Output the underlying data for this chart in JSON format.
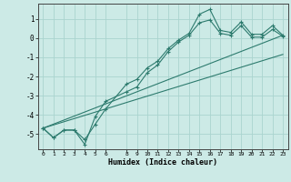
{
  "xlabel": "Humidex (Indice chaleur)",
  "xlim": [
    -0.5,
    23.5
  ],
  "ylim": [
    -5.8,
    1.8
  ],
  "xticks": [
    0,
    1,
    2,
    3,
    4,
    5,
    6,
    8,
    9,
    10,
    11,
    12,
    13,
    14,
    15,
    16,
    17,
    18,
    19,
    20,
    21,
    22,
    23
  ],
  "yticks": [
    -5,
    -4,
    -3,
    -2,
    -1,
    0,
    1
  ],
  "background_color": "#cceae6",
  "grid_color": "#aad4cf",
  "line_color": "#2d7b6e",
  "line1_x": [
    0,
    1,
    2,
    3,
    4,
    5,
    6,
    8,
    9,
    10,
    11,
    12,
    13,
    14,
    15,
    16,
    17,
    18,
    19,
    20,
    21,
    22,
    23
  ],
  "line1_y": [
    -4.7,
    -5.2,
    -4.8,
    -4.8,
    -5.3,
    -4.5,
    -3.7,
    -2.4,
    -2.15,
    -1.55,
    -1.2,
    -0.55,
    -0.1,
    0.25,
    1.25,
    1.5,
    0.4,
    0.3,
    0.85,
    0.2,
    0.2,
    0.65,
    0.15
  ],
  "line2_x": [
    0,
    1,
    2,
    3,
    4,
    5,
    6,
    8,
    9,
    10,
    11,
    12,
    13,
    14,
    15,
    16,
    17,
    18,
    19,
    20,
    21,
    22,
    23
  ],
  "line2_y": [
    -4.7,
    -5.2,
    -4.8,
    -4.8,
    -5.55,
    -4.1,
    -3.3,
    -2.8,
    -2.55,
    -1.8,
    -1.4,
    -0.7,
    -0.2,
    0.15,
    0.8,
    0.95,
    0.25,
    0.15,
    0.65,
    0.05,
    0.05,
    0.45,
    0.1
  ],
  "line3_x": [
    0,
    23
  ],
  "line3_y": [
    -4.7,
    0.15
  ],
  "line4_x": [
    0,
    23
  ],
  "line4_y": [
    -4.7,
    -0.85
  ]
}
